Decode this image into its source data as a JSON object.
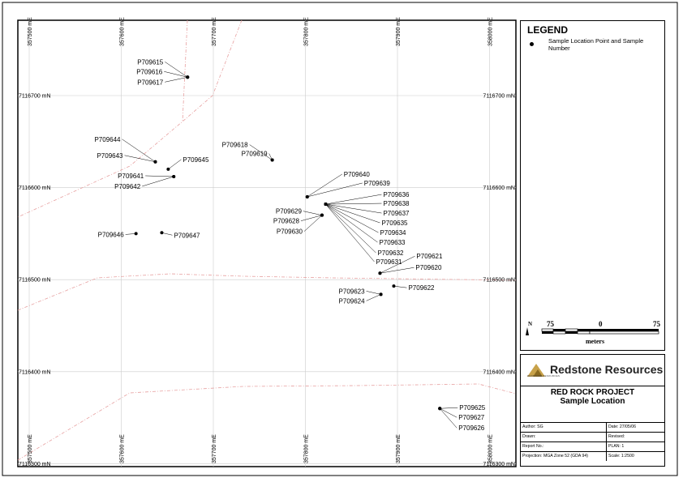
{
  "grid": {
    "eastings": [
      "357500 mE",
      "357600 mE",
      "357700 mE",
      "357800 mE",
      "357900 mE",
      "358000 mE"
    ],
    "northings": [
      "7116700 mN",
      "7116600 mN",
      "7116500 mN",
      "7116400 mN",
      "7116300 mN"
    ]
  },
  "samples": [
    {
      "id": "P709615",
      "e": 357672,
      "n": 7116720
    },
    {
      "id": "P709616",
      "e": 357672,
      "n": 7116720
    },
    {
      "id": "P709617",
      "e": 357672,
      "n": 7116720
    },
    {
      "id": "P709618",
      "e": 357764,
      "n": 7116630
    },
    {
      "id": "P709619",
      "e": 357764,
      "n": 7116630
    },
    {
      "id": "P709644",
      "e": 357637,
      "n": 7116628
    },
    {
      "id": "P709643",
      "e": 357637,
      "n": 7116628
    },
    {
      "id": "P709645",
      "e": 357651,
      "n": 7116620
    },
    {
      "id": "P709641",
      "e": 357657,
      "n": 7116612
    },
    {
      "id": "P709642",
      "e": 357657,
      "n": 7116612
    },
    {
      "id": "P709640",
      "e": 357802,
      "n": 7116590
    },
    {
      "id": "P709639",
      "e": 357802,
      "n": 7116590
    },
    {
      "id": "P709636",
      "e": 357822,
      "n": 7116582
    },
    {
      "id": "P709638",
      "e": 357822,
      "n": 7116582
    },
    {
      "id": "P709637",
      "e": 357822,
      "n": 7116582
    },
    {
      "id": "P709635",
      "e": 357822,
      "n": 7116582
    },
    {
      "id": "P709634",
      "e": 357822,
      "n": 7116582
    },
    {
      "id": "P709633",
      "e": 357822,
      "n": 7116582
    },
    {
      "id": "P709632",
      "e": 357822,
      "n": 7116582
    },
    {
      "id": "P709631",
      "e": 357822,
      "n": 7116582
    },
    {
      "id": "P709629",
      "e": 357818,
      "n": 7116570
    },
    {
      "id": "P709628",
      "e": 357818,
      "n": 7116570
    },
    {
      "id": "P709630",
      "e": 357818,
      "n": 7116570
    },
    {
      "id": "P709646",
      "e": 357616,
      "n": 7116550
    },
    {
      "id": "P709647",
      "e": 357644,
      "n": 7116551
    },
    {
      "id": "P709621",
      "e": 357881,
      "n": 7116507
    },
    {
      "id": "P709620",
      "e": 357881,
      "n": 7116507
    },
    {
      "id": "P709622",
      "e": 357896,
      "n": 7116493
    },
    {
      "id": "P709623",
      "e": 357882,
      "n": 7116484
    },
    {
      "id": "P709624",
      "e": 357882,
      "n": 7116484
    },
    {
      "id": "P709625",
      "e": 357946,
      "n": 7116360
    },
    {
      "id": "P709627",
      "e": 357946,
      "n": 7116360
    },
    {
      "id": "P709626",
      "e": 357946,
      "n": 7116360
    }
  ],
  "legend": {
    "title": "LEGEND",
    "item": "Sample Location Point and Sample Number"
  },
  "scale": {
    "left": "75",
    "mid": "0",
    "right": "75",
    "unit": "meters",
    "north": "N"
  },
  "titleblock": {
    "company": "Redstone Resources",
    "company_sub": "REDSTONE RESOURCES",
    "project": "RED ROCK PROJECT",
    "subtitle": "Sample Location",
    "author": "Author: SG",
    "date": "Date: 27/05/06",
    "drawn": "Drawn:",
    "revised": "Revised:",
    "report": "Report No.:",
    "plan": "PLAN:  1",
    "projection": "Projection: MGA Zone 52 (GDA 94)",
    "scale_text": "Scale: 1:2500"
  },
  "colors": {
    "boundary": "#e7a0a0",
    "grid": "#cccccc"
  }
}
